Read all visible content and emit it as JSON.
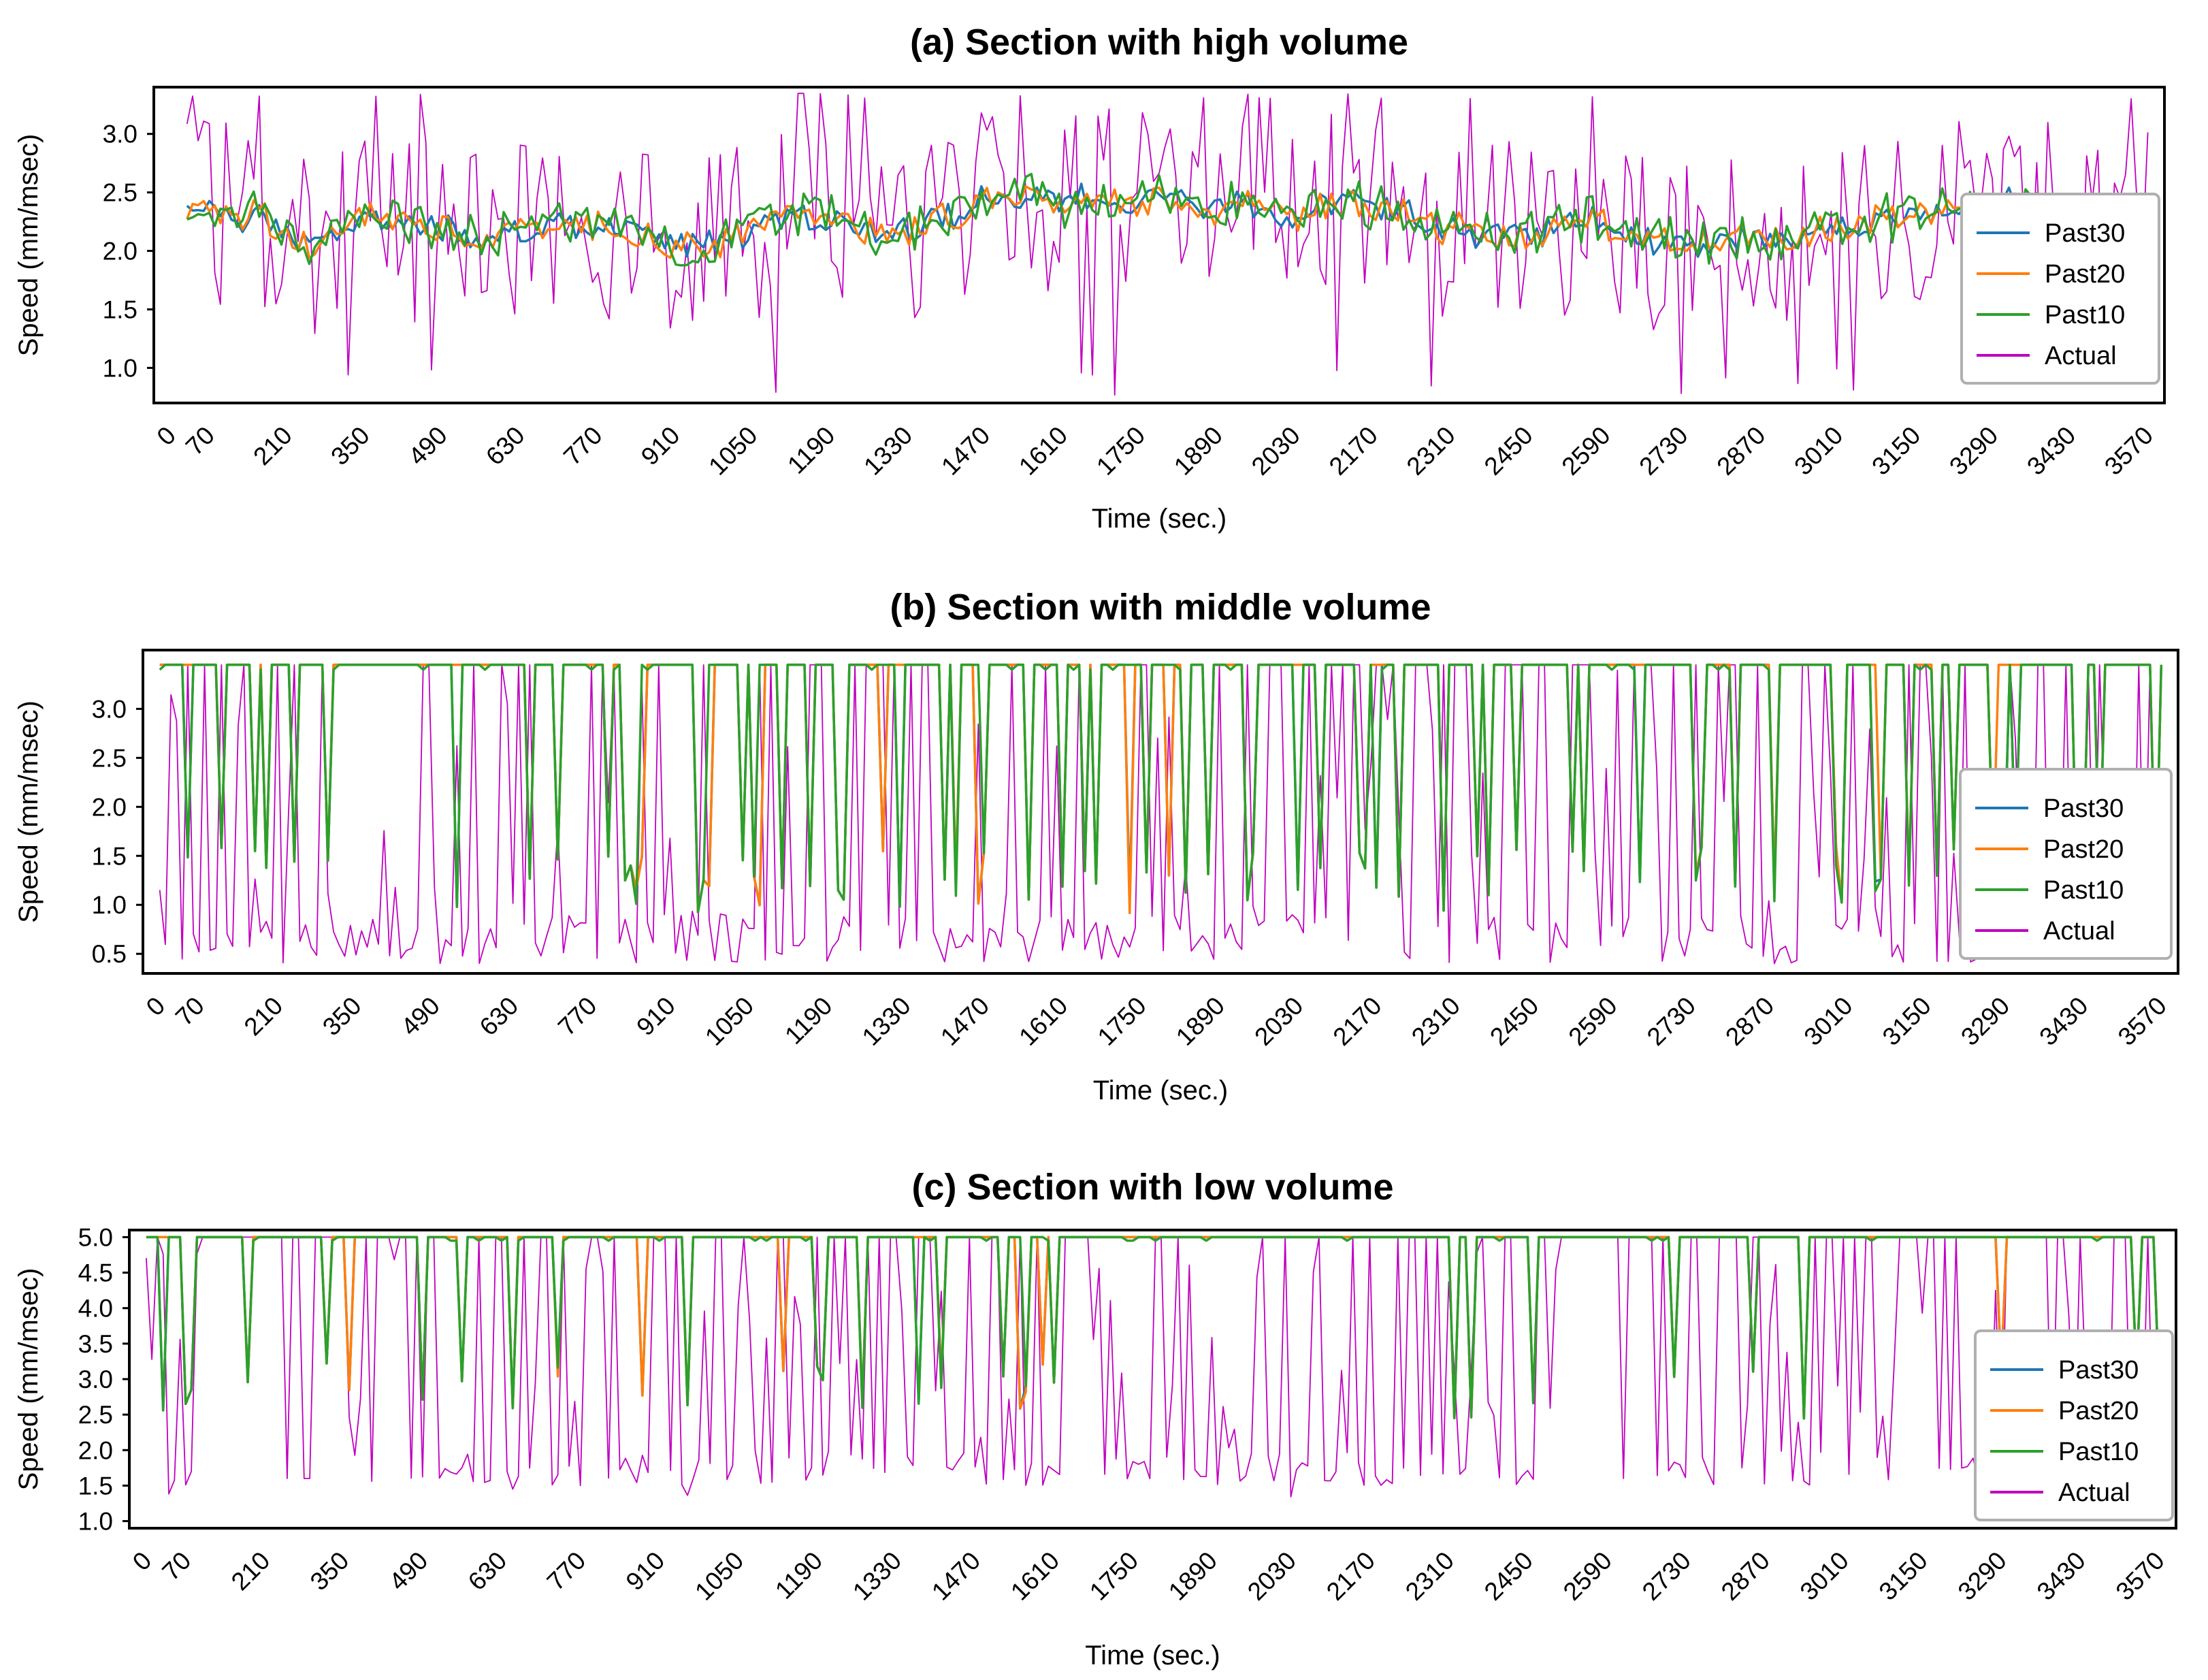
{
  "colors": {
    "past30": "#1f77b4",
    "past20": "#ff7f0e",
    "past10": "#2ca02c",
    "actual": "#c000c0",
    "frame": "#000000",
    "legend_border": "#b0b0b0"
  },
  "chart_data": [
    {
      "type": "line",
      "title": "(a) Section with high volume",
      "xlabel": "Time (sec.)",
      "ylabel": "Speed (mm/msec)",
      "xlim": [
        -30,
        3600
      ],
      "ylim": [
        0.7,
        3.4
      ],
      "x_ticks": [
        "0",
        "70",
        "210",
        "350",
        "490",
        "630",
        "770",
        "910",
        "1050",
        "1190",
        "1330",
        "1470",
        "1610",
        "1750",
        "1890",
        "2030",
        "2170",
        "2310",
        "2450",
        "2590",
        "2730",
        "2870",
        "3010",
        "3150",
        "3290",
        "3430",
        "3570"
      ],
      "y_ticks": [
        "1.0",
        "1.5",
        "2.0",
        "2.5",
        "3.0"
      ],
      "legend": [
        "Past30",
        "Past20",
        "Past10",
        "Actual"
      ],
      "legend_position": "center-right",
      "x_start": 30,
      "x_end": 3570,
      "n_points": 354,
      "actual_range": [
        0.75,
        3.35
      ],
      "prediction_center": 2.3,
      "prediction_spread": 0.35
    },
    {
      "type": "line",
      "title": "(b) Section with middle volume",
      "xlabel": "Time (sec.)",
      "ylabel": "Speed (mm/msec)",
      "xlim": [
        -30,
        3600
      ],
      "ylim": [
        0.3,
        3.6
      ],
      "x_ticks": [
        "0",
        "70",
        "210",
        "350",
        "490",
        "630",
        "770",
        "910",
        "1050",
        "1190",
        "1330",
        "1470",
        "1610",
        "1750",
        "1890",
        "2030",
        "2170",
        "2310",
        "2450",
        "2590",
        "2730",
        "2870",
        "3010",
        "3150",
        "3290",
        "3430",
        "3570"
      ],
      "y_ticks": [
        "0.5",
        "1.0",
        "1.5",
        "2.0",
        "2.5",
        "3.0"
      ],
      "legend": [
        "Past30",
        "Past20",
        "Past10",
        "Actual"
      ],
      "legend_position": "center-right",
      "x_start": 0,
      "x_end": 3570,
      "n_points": 358,
      "actual_range": [
        0.4,
        3.45
      ],
      "prediction_center": 3.45,
      "prediction_spread": 2.5
    },
    {
      "type": "line",
      "title": "(c) Section with low volume",
      "xlabel": "Time (sec.)",
      "ylabel": "Speed (mm/msec)",
      "xlim": [
        -30,
        3600
      ],
      "ylim": [
        0.9,
        5.1
      ],
      "x_ticks": [
        "0",
        "70",
        "210",
        "350",
        "490",
        "630",
        "770",
        "910",
        "1050",
        "1190",
        "1330",
        "1470",
        "1610",
        "1750",
        "1890",
        "2030",
        "2170",
        "2310",
        "2450",
        "2590",
        "2730",
        "2870",
        "3010",
        "3150",
        "3290",
        "3430",
        "3570"
      ],
      "y_ticks": [
        "1.0",
        "1.5",
        "2.0",
        "2.5",
        "3.0",
        "3.5",
        "4.0",
        "4.5",
        "5.0"
      ],
      "legend": [
        "Past30",
        "Past20",
        "Past10",
        "Actual"
      ],
      "legend_position": "center-right",
      "x_start": 0,
      "x_end": 3570,
      "n_points": 358,
      "actual_range": [
        1.3,
        5.0
      ],
      "prediction_center": 5.0,
      "prediction_spread": 2.5
    }
  ]
}
